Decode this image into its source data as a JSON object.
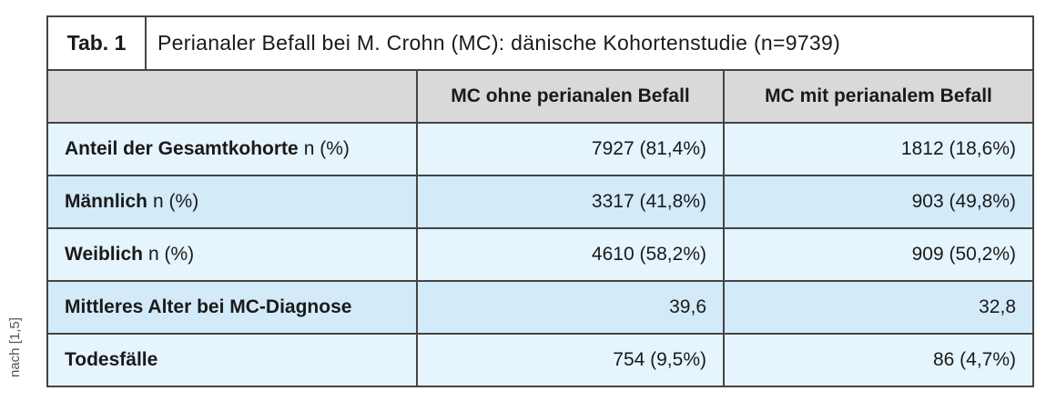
{
  "table": {
    "label": "Tab. 1",
    "title": "Perianaler Befall bei M. Crohn (MC): dänische Kohortenstudie (n=9739)",
    "columns": [
      "",
      "MC ohne perianalen Befall",
      "MC mit perianalem Befall"
    ],
    "rows": [
      {
        "label": "Anteil der Gesamtkohorte",
        "unit": "n (%)",
        "values": [
          "7927 (81,4%)",
          "1812 (18,6%)"
        ]
      },
      {
        "label": "Männlich",
        "unit": "n (%)",
        "values": [
          "3317 (41,8%)",
          "903 (49,8%)"
        ]
      },
      {
        "label": "Weiblich",
        "unit": "n (%)",
        "values": [
          "4610 (58,2%)",
          "909 (50,2%)"
        ]
      },
      {
        "label": "Mittleres Alter bei MC-Diagnose",
        "unit": "",
        "values": [
          "39,6",
          "32,8"
        ]
      },
      {
        "label": "Todesfälle",
        "unit": "",
        "values": [
          "754 (9,5%)",
          "86 (4,7%)"
        ]
      }
    ]
  },
  "source": "nach [1,5]"
}
